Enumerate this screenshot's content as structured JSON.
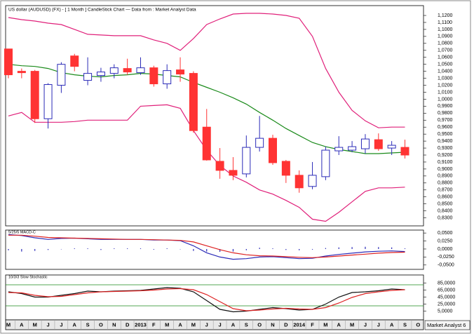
{
  "chart_data": [
    {
      "type": "candlestick",
      "title": "US dollar (AUDUSD) (FX) - [ 1 Month ] CandleStick Chart — Data from : Market Analyst Data",
      "annotation": "Market Analyst 6",
      "categories": [
        "M",
        "A",
        "M",
        "J",
        "J",
        "A",
        "S",
        "O",
        "N",
        "D",
        "2013",
        "F",
        "M",
        "A",
        "M",
        "J",
        "J",
        "A",
        "S",
        "O",
        "N",
        "D",
        "2014",
        "F",
        "M",
        "A",
        "M",
        "J",
        "J",
        "A",
        "S",
        "O"
      ],
      "open": [
        1.072,
        1.04,
        1.04,
        0.972,
        1.02,
        1.062,
        1.027,
        1.034,
        1.037,
        1.044,
        1.038,
        1.045,
        1.022,
        1.042,
        1.037,
        0.96,
        0.911,
        0.898,
        0.893,
        0.931,
        0.944,
        0.911,
        0.891,
        0.875,
        0.889,
        0.926,
        0.927,
        0.929,
        0.942,
        0.93,
        0.931,
        null
      ],
      "high": [
        1.072,
        1.044,
        1.042,
        1.023,
        1.053,
        1.065,
        1.06,
        1.045,
        1.05,
        1.058,
        1.06,
        1.048,
        1.05,
        1.06,
        1.04,
        0.986,
        0.93,
        0.917,
        0.948,
        0.976,
        0.949,
        0.913,
        0.898,
        0.91,
        0.932,
        0.947,
        0.94,
        0.95,
        0.951,
        0.94,
        0.942,
        null
      ],
      "low": [
        1.03,
        1.03,
        0.966,
        0.958,
        1.009,
        1.04,
        1.02,
        1.025,
        1.03,
        1.035,
        1.035,
        1.018,
        1.015,
        1.025,
        0.952,
        0.912,
        0.886,
        0.884,
        0.888,
        0.925,
        0.906,
        0.88,
        0.866,
        0.871,
        0.884,
        0.92,
        0.924,
        0.922,
        0.926,
        0.92,
        0.915,
        null
      ],
      "close": [
        1.035,
        1.038,
        0.972,
        1.021,
        1.05,
        1.047,
        1.037,
        1.039,
        1.045,
        1.039,
        1.045,
        1.022,
        1.041,
        1.036,
        0.955,
        0.913,
        0.898,
        0.891,
        0.931,
        0.944,
        0.909,
        0.891,
        0.873,
        0.891,
        0.927,
        0.931,
        0.932,
        0.943,
        0.929,
        0.934,
        0.92,
        null
      ],
      "up_color": "#2b2bb8",
      "down_color": "#ff3333",
      "overlays": [
        {
          "color": "#e0207a",
          "values": [
            1.117,
            1.114,
            1.112,
            1.109,
            1.107,
            1.1,
            1.093,
            1.092,
            1.091,
            1.091,
            1.091,
            1.085,
            1.08,
            1.07,
            1.087,
            1.107,
            1.115,
            1.122,
            1.123,
            1.123,
            1.122,
            1.12,
            1.116,
            1.09,
            1.044,
            1.01,
            0.984,
            0.969,
            0.959,
            0.96,
            0.96,
            null
          ]
        },
        {
          "color": "#1a8a1a",
          "values": [
            1.05,
            1.048,
            1.047,
            1.044,
            1.038,
            1.035,
            1.033,
            1.032,
            1.034,
            1.035,
            1.037,
            1.036,
            1.034,
            1.032,
            1.024,
            1.017,
            1.01,
            1.002,
            0.993,
            0.981,
            0.97,
            0.958,
            0.948,
            0.938,
            0.932,
            0.928,
            0.925,
            0.922,
            0.922,
            0.923,
            0.924,
            null
          ]
        },
        {
          "color": "#e0207a",
          "values": [
            0.976,
            0.981,
            0.967,
            0.967,
            0.967,
            0.968,
            0.97,
            0.97,
            0.97,
            0.97,
            0.99,
            0.991,
            0.992,
            0.987,
            0.955,
            0.927,
            0.905,
            0.89,
            0.881,
            0.87,
            0.864,
            0.855,
            0.845,
            0.828,
            0.825,
            0.838,
            0.853,
            0.868,
            0.873,
            0.873,
            0.874,
            null
          ]
        }
      ],
      "ylim": [
        0.8185,
        1.1341
      ],
      "yticks": [
        {
          "value": 1.12,
          "label": "1,1200"
        },
        {
          "value": 1.11,
          "label": "1,1100"
        },
        {
          "value": 1.1,
          "label": "1,1000"
        },
        {
          "value": 1.09,
          "label": "1,0900"
        },
        {
          "value": 1.08,
          "label": "1,0800"
        },
        {
          "value": 1.07,
          "label": "1,0700"
        },
        {
          "value": 1.06,
          "label": "1,0600"
        },
        {
          "value": 1.05,
          "label": "1,0500"
        },
        {
          "value": 1.04,
          "label": "1,0400"
        },
        {
          "value": 1.03,
          "label": "1,0300"
        },
        {
          "value": 1.02,
          "label": "1,0200"
        },
        {
          "value": 1.01,
          "label": "1,0100"
        },
        {
          "value": 1.0,
          "label": "1,0000"
        },
        {
          "value": 0.99,
          "label": "0,9900"
        },
        {
          "value": 0.98,
          "label": "0,9800"
        },
        {
          "value": 0.97,
          "label": "0,9700"
        },
        {
          "value": 0.96,
          "label": "0,9600"
        },
        {
          "value": 0.95,
          "label": "0,9500"
        },
        {
          "value": 0.94,
          "label": "0,9400"
        },
        {
          "value": 0.93,
          "label": "0,9300"
        },
        {
          "value": 0.92,
          "label": "0,9200"
        },
        {
          "value": 0.91,
          "label": "0,9100"
        },
        {
          "value": 0.9,
          "label": "0,9000"
        },
        {
          "value": 0.89,
          "label": "0,8900"
        },
        {
          "value": 0.88,
          "label": "0,8800"
        },
        {
          "value": 0.87,
          "label": "0,8700"
        },
        {
          "value": 0.86,
          "label": "0,8600"
        },
        {
          "value": 0.85,
          "label": "0,8500"
        },
        {
          "value": 0.84,
          "label": "0,8400"
        },
        {
          "value": 0.83,
          "label": "0,8300"
        }
      ]
    },
    {
      "type": "line",
      "title": "5/25/5 MACD-C",
      "series": [
        {
          "color": "#2b2bb8",
          "values": [
            0.045,
            0.042,
            0.035,
            0.03,
            0.033,
            0.034,
            0.032,
            0.03,
            0.03,
            0.03,
            0.03,
            0.028,
            0.028,
            0.026,
            0.01,
            -0.012,
            -0.025,
            -0.032,
            -0.03,
            -0.025,
            -0.024,
            -0.027,
            -0.03,
            -0.029,
            -0.022,
            -0.017,
            -0.013,
            -0.009,
            -0.007,
            -0.006,
            -0.008,
            null
          ]
        },
        {
          "color": "#dd2222",
          "values": [
            0.043,
            0.043,
            0.04,
            0.036,
            0.035,
            0.034,
            0.033,
            0.032,
            0.031,
            0.03,
            0.03,
            0.029,
            0.028,
            0.027,
            0.022,
            0.01,
            -0.002,
            -0.012,
            -0.018,
            -0.021,
            -0.022,
            -0.024,
            -0.026,
            -0.027,
            -0.025,
            -0.022,
            -0.019,
            -0.016,
            -0.013,
            -0.011,
            -0.01,
            null
          ]
        }
      ],
      "histogram": {
        "color": "#2b2bb8",
        "values": [
          -0.004,
          -0.008,
          -0.006,
          -0.003,
          -0.001,
          0.002,
          0.002,
          -0.003,
          0.002,
          0.002,
          0.002,
          -0.002,
          0.002,
          -0.001,
          -0.006,
          -0.008,
          -0.009,
          -0.008,
          -0.004,
          0.004,
          0.002,
          -0.003,
          -0.004,
          -0.002,
          0.003,
          0.005,
          0.006,
          0.007,
          0.006,
          0.005,
          0.002,
          null
        ]
      },
      "ylim": [
        -0.0636,
        0.0591
      ],
      "yticks": [
        {
          "value": 0.05,
          "label": "0,0500"
        },
        {
          "value": 0.025,
          "label": "0,0250"
        },
        {
          "value": 0,
          "label": "0,0000"
        },
        {
          "value": -0.025,
          "label": "-0,0250"
        },
        {
          "value": -0.05,
          "label": "-0,0500"
        }
      ]
    },
    {
      "type": "line",
      "title": "10/3/3 Slow Stochastic",
      "series": [
        {
          "color": "#111111",
          "values": [
            60,
            55,
            45,
            45,
            50,
            55,
            62,
            60,
            62,
            63,
            64,
            68,
            72,
            70,
            60,
            35,
            10,
            3,
            5,
            10,
            15,
            12,
            8,
            10,
            25,
            45,
            58,
            60,
            63,
            68,
            66,
            null
          ]
        },
        {
          "color": "#dd2222",
          "values": [
            58,
            57,
            50,
            46,
            47,
            52,
            57,
            60,
            61,
            62,
            63,
            65,
            68,
            69,
            66,
            52,
            32,
            12,
            6,
            8,
            11,
            13,
            11,
            10,
            15,
            28,
            44,
            55,
            60,
            64,
            66,
            null
          ]
        }
      ],
      "levels": {
        "color": "#1a8a1a",
        "values": [
          80,
          20
        ]
      },
      "ylim": [
        -20,
        108
      ],
      "yticks": [
        {
          "value": 85,
          "label": "85,0000"
        },
        {
          "value": 65,
          "label": "65,0000"
        },
        {
          "value": 45,
          "label": "45,0000"
        },
        {
          "value": 25,
          "label": "25,0000"
        },
        {
          "value": 5,
          "label": "5,0000"
        }
      ]
    }
  ]
}
